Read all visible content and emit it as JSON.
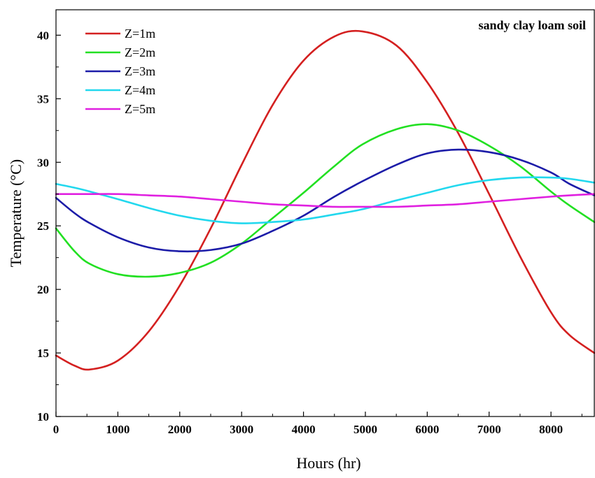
{
  "chart_data": {
    "type": "line",
    "annotation": "sandy clay loam soil",
    "xlabel": "Hours (hr)",
    "ylabel": "Temperature (°C)",
    "xlim": [
      0,
      8700
    ],
    "ylim": [
      10,
      42
    ],
    "xticks": [
      0,
      1000,
      2000,
      3000,
      4000,
      5000,
      6000,
      7000,
      8000
    ],
    "yticks": [
      10,
      15,
      20,
      25,
      30,
      35,
      40
    ],
    "legend_position": "top-left",
    "x": [
      0,
      300,
      550,
      1000,
      1500,
      2000,
      2500,
      3000,
      3500,
      4000,
      4500,
      4950,
      5500,
      6000,
      6500,
      7000,
      7500,
      8000,
      8300,
      8700
    ],
    "series": [
      {
        "name": "Z=1m",
        "color": "#d42020",
        "values": [
          14.8,
          14.0,
          13.7,
          14.4,
          16.7,
          20.3,
          24.8,
          29.8,
          34.5,
          38.0,
          39.9,
          40.3,
          39.2,
          36.3,
          32.3,
          27.5,
          22.6,
          18.2,
          16.4,
          15.0
        ]
      },
      {
        "name": "Z=2m",
        "color": "#22e022",
        "values": [
          24.8,
          23.0,
          22.0,
          21.2,
          21.0,
          21.3,
          22.1,
          23.6,
          25.6,
          27.6,
          29.7,
          31.4,
          32.6,
          33.0,
          32.5,
          31.3,
          29.7,
          27.7,
          26.6,
          25.3
        ]
      },
      {
        "name": "Z=3m",
        "color": "#1c1ca8",
        "values": [
          27.2,
          26.0,
          25.2,
          24.1,
          23.3,
          23.0,
          23.1,
          23.6,
          24.6,
          25.8,
          27.3,
          28.5,
          29.8,
          30.7,
          31.0,
          30.8,
          30.2,
          29.2,
          28.3,
          27.4
        ]
      },
      {
        "name": "Z=4m",
        "color": "#22d8ee",
        "values": [
          28.3,
          28.0,
          27.7,
          27.1,
          26.4,
          25.8,
          25.4,
          25.2,
          25.3,
          25.5,
          25.9,
          26.3,
          27.0,
          27.6,
          28.2,
          28.6,
          28.8,
          28.8,
          28.7,
          28.4
        ]
      },
      {
        "name": "Z=5m",
        "color": "#e020e0",
        "values": [
          27.5,
          27.5,
          27.5,
          27.5,
          27.4,
          27.3,
          27.1,
          26.9,
          26.7,
          26.6,
          26.5,
          26.5,
          26.5,
          26.6,
          26.7,
          26.9,
          27.1,
          27.3,
          27.4,
          27.5
        ]
      }
    ]
  }
}
